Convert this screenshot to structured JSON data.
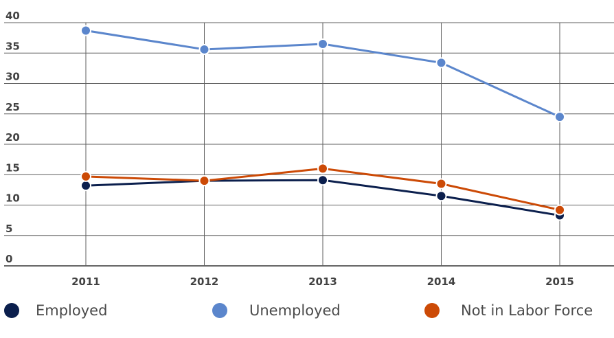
{
  "chart_data": {
    "type": "line",
    "title": "",
    "xlabel": "",
    "ylabel": "",
    "categories": [
      "2011",
      "2012",
      "2013",
      "2014",
      "2015"
    ],
    "ylim": [
      0,
      40
    ],
    "yticks": [
      "0",
      "5",
      "10",
      "15",
      "20",
      "25",
      "30",
      "35",
      "40"
    ],
    "grid": "on",
    "legend_position": "bottom",
    "series": [
      {
        "name": "Employed",
        "color": "#0b1f4d",
        "values": [
          13.2,
          14.0,
          14.1,
          11.5,
          8.3
        ]
      },
      {
        "name": "Unemployed",
        "color": "#5b86cc",
        "values": [
          38.7,
          35.6,
          36.5,
          33.4,
          24.5
        ]
      },
      {
        "name": "Not in Labor Force",
        "color": "#cc4a06",
        "values": [
          14.7,
          14.0,
          16.0,
          13.5,
          9.2
        ]
      }
    ]
  },
  "legend": [
    {
      "label": "Employed",
      "color": "#0b1f4d"
    },
    {
      "label": "Unemployed",
      "color": "#5b86cc"
    },
    {
      "label": "Not in Labor Force",
      "color": "#cc4a06"
    }
  ]
}
